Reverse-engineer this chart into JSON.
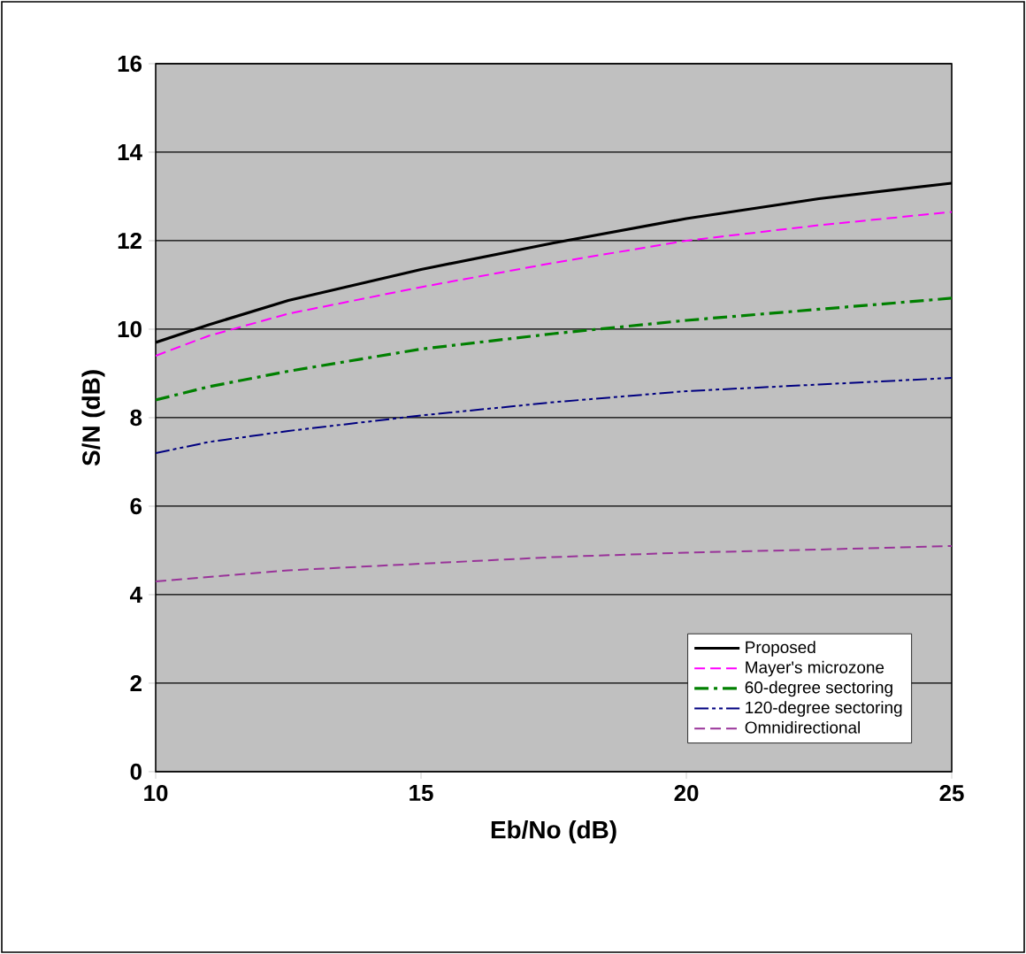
{
  "chart_data": {
    "type": "line",
    "xlabel": "Eb/No  (dB)",
    "ylabel": "S/N  (dB)",
    "xlim": [
      10,
      25
    ],
    "ylim": [
      0,
      16
    ],
    "xticks": [
      10,
      15,
      20,
      25
    ],
    "yticks": [
      0,
      2,
      4,
      6,
      8,
      10,
      12,
      14,
      16
    ],
    "grid": "y",
    "legend": "bottom right",
    "marker": "none",
    "x": [
      10,
      11,
      12.5,
      15,
      17.5,
      20,
      22.5,
      25
    ],
    "series": [
      {
        "name": "Proposed",
        "color": "#000000",
        "line_style": "solid",
        "values": [
          9.7,
          10.1,
          10.65,
          11.35,
          11.95,
          12.5,
          12.95,
          13.3
        ]
      },
      {
        "name": "Mayer's microzone",
        "color": "#ff00ff",
        "line_style": "dashed",
        "values": [
          9.4,
          9.85,
          10.35,
          10.95,
          11.5,
          12.0,
          12.35,
          12.65
        ]
      },
      {
        "name": "60-degree sectoring",
        "color": "#008000",
        "line_style": "dashdot",
        "values": [
          8.4,
          8.7,
          9.05,
          9.55,
          9.9,
          10.2,
          10.45,
          10.7
        ]
      },
      {
        "name": "120-degree sectoring",
        "color": "#000080",
        "line_style": "dashdotdot",
        "values": [
          7.2,
          7.45,
          7.7,
          8.05,
          8.35,
          8.6,
          8.75,
          8.9
        ]
      },
      {
        "name": "Omnidirectional",
        "color": "#993399",
        "line_style": "dashed",
        "values": [
          4.3,
          4.4,
          4.55,
          4.7,
          4.85,
          4.95,
          5.02,
          5.1
        ]
      }
    ]
  }
}
